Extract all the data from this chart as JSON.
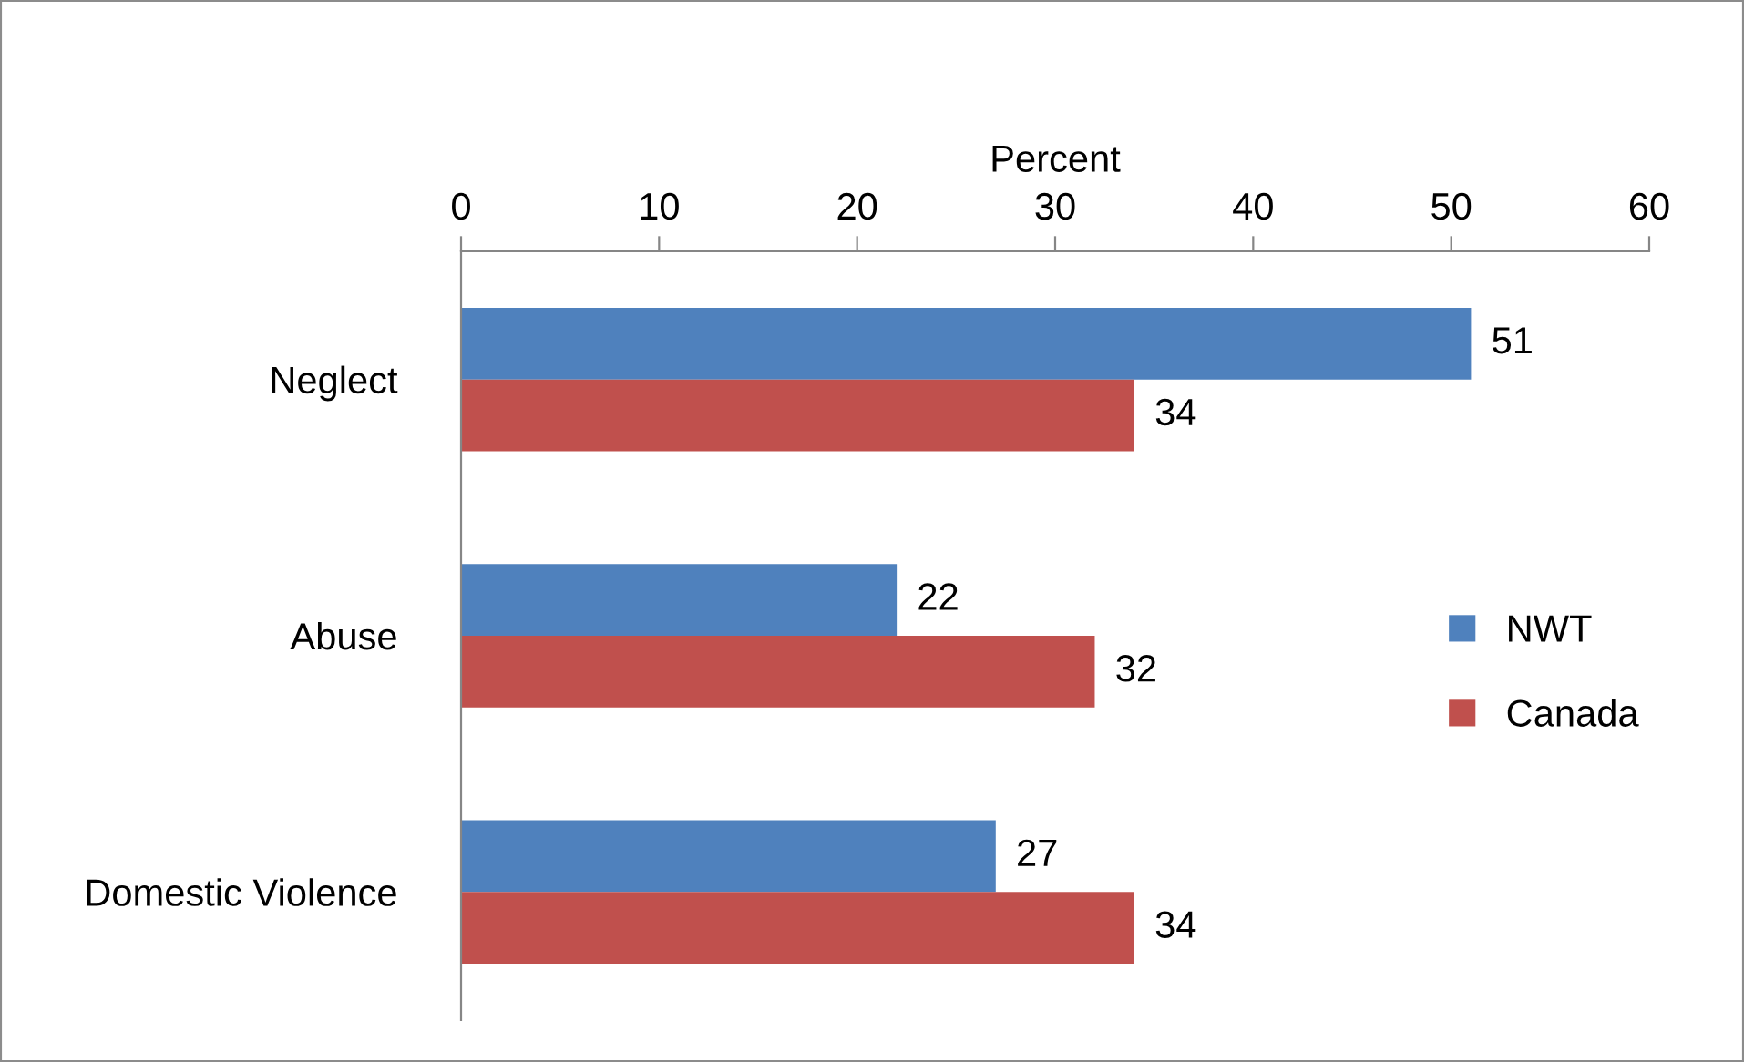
{
  "chart_data": {
    "type": "bar",
    "orientation": "horizontal",
    "xlabel": "Percent",
    "categories": [
      "Neglect",
      "Abuse",
      "Domestic Violence"
    ],
    "series": [
      {
        "name": "NWT",
        "color": "#4f81bd",
        "values": [
          51,
          22,
          27
        ]
      },
      {
        "name": "Canada",
        "color": "#c0504d",
        "values": [
          34,
          32,
          34
        ]
      }
    ],
    "xlim": [
      0,
      60
    ],
    "xticks": [
      0,
      10,
      20,
      30,
      40,
      50,
      60
    ],
    "data_labels": true,
    "legend": "right",
    "grid": false
  }
}
